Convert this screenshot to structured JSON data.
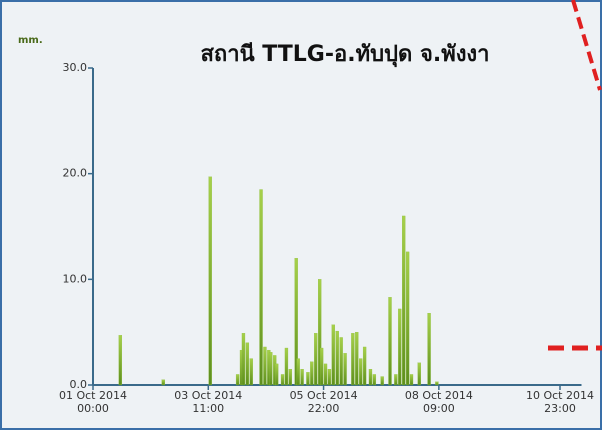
{
  "chart_data": {
    "type": "bar",
    "title": "สถานี TTLG-อ.ทับปุด จ.พังงา",
    "y_label": "mm.",
    "x": [
      14,
      36,
      60,
      74,
      76,
      77,
      79,
      81,
      86,
      88,
      90,
      91,
      93,
      94,
      97,
      99,
      101,
      104,
      105,
      107,
      110,
      112,
      114,
      116,
      117,
      119,
      121,
      123,
      125,
      127,
      129,
      133,
      135,
      137,
      139,
      142,
      144,
      148,
      152,
      155,
      157,
      159,
      161,
      163,
      167,
      172,
      176
    ],
    "values": [
      4.7,
      0.5,
      19.7,
      1.0,
      3.3,
      4.9,
      4.0,
      2.5,
      18.5,
      3.6,
      3.3,
      3.1,
      2.8,
      2.0,
      1.0,
      3.5,
      1.5,
      12.0,
      2.5,
      1.5,
      1.2,
      2.2,
      4.9,
      10.0,
      3.5,
      2.0,
      1.5,
      5.7,
      5.1,
      4.5,
      3.0,
      4.9,
      5.0,
      2.5,
      3.6,
      1.5,
      1.0,
      0.8,
      8.3,
      1.0,
      7.2,
      16.0,
      12.6,
      1.0,
      2.1,
      6.8,
      0.3
    ],
    "color": "#8cbf3a",
    "xlim": [
      0,
      250
    ],
    "xticks": [
      {
        "value": 0,
        "label": "01 Oct 2014 00:00"
      },
      {
        "value": 59,
        "label": "03 Oct 2014 11:00"
      },
      {
        "value": 118,
        "label": "05 Oct 2014 22:00"
      },
      {
        "value": 177,
        "label": "08 Oct 2014 09:00"
      },
      {
        "value": 239,
        "label": "10 Oct 2014 23:00"
      }
    ],
    "ylim": [
      0,
      30
    ],
    "yticks": [
      {
        "value": 0,
        "label": "0.0"
      },
      {
        "value": 10,
        "label": "10.0"
      },
      {
        "value": 20,
        "label": "20.0"
      },
      {
        "value": 30,
        "label": "30.0"
      }
    ]
  }
}
